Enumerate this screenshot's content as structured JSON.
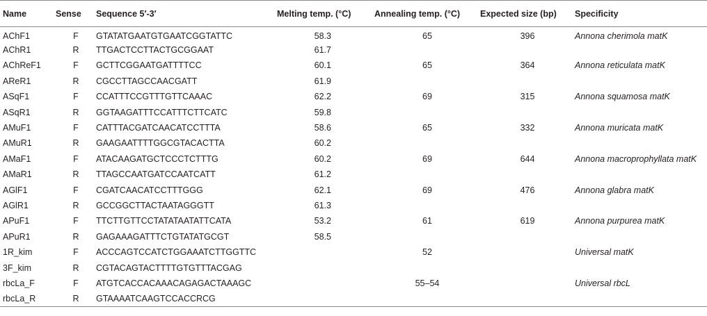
{
  "table": {
    "headers": {
      "name": "Name",
      "sense": "Sense",
      "sequence": "Sequence 5′-3′",
      "melting": "Melting temp. (°C)",
      "annealing": "Annealing temp. (°C)",
      "size": "Expected size (bp)",
      "specificity": "Specificity"
    },
    "rows": [
      {
        "name": "AChF1",
        "sense": "F",
        "sequence": "GTATATGAATGTGAATCGGTATTC",
        "melting": "58.3",
        "annealing": "65",
        "size": "396",
        "specificity": "Annona cherimola matK"
      },
      {
        "name": "AChR1",
        "sense": "R",
        "sequence": "TTGACTCCTTACTGCGGAAT",
        "melting": "61.7",
        "annealing": "",
        "size": "",
        "specificity": ""
      },
      {
        "name": "AChReF1",
        "sense": "F",
        "sequence": "GCTTCGGAATGATTTTCC",
        "melting": "60.1",
        "annealing": "65",
        "size": "364",
        "specificity": "Annona reticulata matK"
      },
      {
        "name": "AReR1",
        "sense": "R",
        "sequence": "CGCCTTAGCCAACGATT",
        "melting": "61.9",
        "annealing": "",
        "size": "",
        "specificity": ""
      },
      {
        "name": "ASqF1",
        "sense": "F",
        "sequence": "CCATTTCCGTTTGTTCAAAC",
        "melting": "62.2",
        "annealing": "69",
        "size": "315",
        "specificity": "Annona squamosa matK"
      },
      {
        "name": "ASqR1",
        "sense": "R",
        "sequence": "GGTAAGATTTCCATTTCTTCATC",
        "melting": "59.8",
        "annealing": "",
        "size": "",
        "specificity": ""
      },
      {
        "name": "AMuF1",
        "sense": "F",
        "sequence": "CATTTACGATCAACATCCTTTA",
        "melting": "58.6",
        "annealing": "65",
        "size": "332",
        "specificity": "Annona muricata matK"
      },
      {
        "name": "AMuR1",
        "sense": "R",
        "sequence": "GAAGAATTTTGGCGTACACTTA",
        "melting": "60.2",
        "annealing": "",
        "size": "",
        "specificity": ""
      },
      {
        "name": "AMaF1",
        "sense": "F",
        "sequence": "ATACAAGATGCTCCCTCTTTG",
        "melting": "60.2",
        "annealing": "69",
        "size": "644",
        "specificity": "Annona macroprophyllata matK"
      },
      {
        "name": "AMaR1",
        "sense": "R",
        "sequence": "TTAGCCAATGATCCAATCATT",
        "melting": "61.2",
        "annealing": "",
        "size": "",
        "specificity": ""
      },
      {
        "name": "AGlF1",
        "sense": "F",
        "sequence": "CGATCAACATCCTTTGGG",
        "melting": "62.1",
        "annealing": "69",
        "size": "476",
        "specificity": "Annona glabra matK"
      },
      {
        "name": "AGlR1",
        "sense": "R",
        "sequence": "GCCGGCTTACTAATAGGGTT",
        "melting": "61.3",
        "annealing": "",
        "size": "",
        "specificity": ""
      },
      {
        "name": "APuF1",
        "sense": "F",
        "sequence": "TTCTTGTTCCTATATAATATTCATA",
        "melting": "53.2",
        "annealing": "61",
        "size": "619",
        "specificity": "Annona purpurea matK"
      },
      {
        "name": "APuR1",
        "sense": "R",
        "sequence": "GAGAAAGATTTCTGTATATGCGT",
        "melting": "58.5",
        "annealing": "",
        "size": "",
        "specificity": ""
      },
      {
        "name": "1R_kim",
        "sense": "F",
        "sequence": "ACCCAGTCCATCTGGAAATCTTGGTTC",
        "melting": "",
        "annealing": "52",
        "size": "",
        "specificity": "Universal matK"
      },
      {
        "name": "3F_kim",
        "sense": "R",
        "sequence": "CGTACAGTACTTTTGTGTTTACGAG",
        "melting": "",
        "annealing": "",
        "size": "",
        "specificity": ""
      },
      {
        "name": "rbcLa_F",
        "sense": "F",
        "sequence": "ATGTCACCACAAACAGAGACTAAAGC",
        "melting": "",
        "annealing": "55–54",
        "size": "",
        "specificity": "Universal rbcL"
      },
      {
        "name": "rbcLa_R",
        "sense": "R",
        "sequence": "GTAAAATCAAGTCCACCRCG",
        "melting": "",
        "annealing": "",
        "size": "",
        "specificity": ""
      }
    ]
  }
}
